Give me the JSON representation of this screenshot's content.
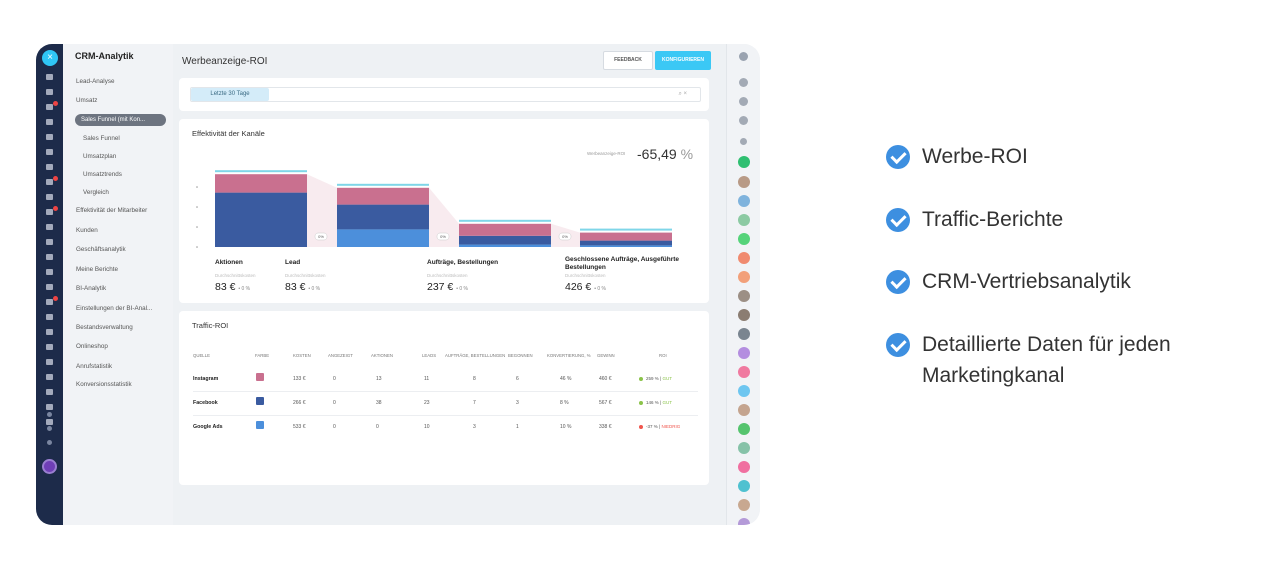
{
  "sidebar_left": {
    "close_glyph": "×"
  },
  "nav": {
    "header": "CRM-Analytik",
    "items": [
      {
        "label": "Lead-Analyse"
      },
      {
        "label": "Umsatz"
      },
      {
        "label": "Sales Funnel (mit Kon..."
      },
      {
        "label": "Sales Funnel"
      },
      {
        "label": "Umsatzplan"
      },
      {
        "label": "Umsatztrends"
      },
      {
        "label": "Vergleich"
      },
      {
        "label": "Effektivität der Mitarbeiter"
      },
      {
        "label": "Kunden"
      },
      {
        "label": "Geschäftsanalytik"
      },
      {
        "label": "Meine Berichte"
      },
      {
        "label": "BI-Analytik"
      },
      {
        "label": "Einstellungen der BI-Anal..."
      },
      {
        "label": "Bestandsverwaltung"
      },
      {
        "label": "Onlineshop"
      },
      {
        "label": "Anrufstatistik"
      },
      {
        "label": "Konversionsstatistik"
      }
    ]
  },
  "page": {
    "title": "Werbeanzeige-ROI",
    "feedback_label": "FEEDBACK",
    "configure_label": "KONFIGURIEREN",
    "filter_chip": "Letzte 30 Tage",
    "search_glyphs": "⌕ ×"
  },
  "channels_card": {
    "title": "Effektivität der Kanäle",
    "roi_label": "Werbeanzeige-ROI",
    "roi_value": "-65,49",
    "roi_unit": "%",
    "stages": [
      {
        "name": "Aktionen",
        "sub": "Durchschnittskosten",
        "value": "83 €",
        "delta": "• 0 %"
      },
      {
        "name": "Lead",
        "sub": "Durchschnittskosten",
        "value": "83 €",
        "delta": "• 0 %"
      },
      {
        "name": "Aufträge, Bestellungen",
        "sub": "Durchschnittskosten",
        "value": "237 €",
        "delta": "• 0 %"
      },
      {
        "name": "Geschlossene Aufträge, Ausgeführte Bestellungen",
        "sub": "Durchschnittskosten",
        "value": "426 €",
        "delta": "• 0 %"
      }
    ],
    "conv_badges": [
      "0%",
      "0%",
      "0%"
    ]
  },
  "chart_data": {
    "type": "bar",
    "categories": [
      "Aktionen",
      "Lead",
      "Aufträge, Bestellungen",
      "Geschlossene Aufträge, Ausgeführte Bestellungen"
    ],
    "series": [
      {
        "color": "#c9708f",
        "values": [
          23,
          21,
          15,
          10
        ]
      },
      {
        "color": "#3a5ba0",
        "values": [
          68,
          31,
          11,
          6
        ]
      },
      {
        "color": "#4c8fdb",
        "values": [
          0,
          22,
          3,
          2
        ]
      }
    ],
    "stacked": true,
    "ylim": [
      0,
      100
    ]
  },
  "traffic_card": {
    "title": "Traffic-ROI",
    "headers": [
      "QUELLE",
      "FARBE",
      "KOSTEN",
      "ANGEZEIGT",
      "AKTIONEN",
      "LEADS",
      "AUFTRÄGE, BESTELLUNGEN",
      "BEGONNEN",
      "KONVERTIERUNG, %",
      "GEWINN",
      "ROI"
    ],
    "rows": [
      {
        "source": "Instagram",
        "color": "#c9708f",
        "cost": "133 €",
        "shown": "0",
        "actions": "13",
        "leads": "11",
        "orders": "8",
        "started": "6",
        "conv": "46 %",
        "profit": "460 €",
        "roi": "259 %",
        "roi_tag": "GUT",
        "roi_color": "#8bc34a",
        "tag_color": "#8bc34a"
      },
      {
        "source": "Facebook",
        "color": "#3a5ba0",
        "cost": "266 €",
        "shown": "0",
        "actions": "38",
        "leads": "23",
        "orders": "7",
        "started": "3",
        "conv": "8 %",
        "profit": "567 €",
        "roi": "146 %",
        "roi_tag": "GUT",
        "roi_color": "#8bc34a",
        "tag_color": "#8bc34a"
      },
      {
        "source": "Google Ads",
        "color": "#4c8fdb",
        "cost": "533 €",
        "shown": "0",
        "actions": "0",
        "leads": "10",
        "orders": "3",
        "started": "1",
        "conv": "10 %",
        "profit": "338 €",
        "roi": "-37 %",
        "roi_tag": "NIEDRIG",
        "roi_color": "#f0554d",
        "tag_color": "#f0554d"
      }
    ]
  },
  "bullets": [
    {
      "text": "Werbe-ROI"
    },
    {
      "text": "Traffic-Berichte"
    },
    {
      "text": "CRM-Vertriebsanalytik"
    },
    {
      "text": "Detaillierte Daten für jeden",
      "text2": "Marketingkanal"
    }
  ]
}
